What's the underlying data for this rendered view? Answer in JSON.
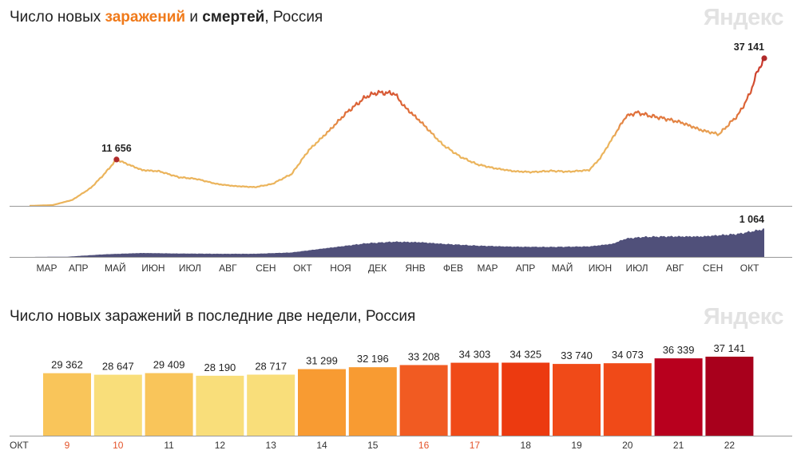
{
  "chart1": {
    "title_parts": {
      "p1": "Число новых ",
      "p2": "заражений",
      "p3": " и ",
      "p4": "смертей",
      "p5": ", Россия"
    },
    "brand": "Яндекс"
  },
  "chart2": {
    "title": "Число новых заражений в последние две недели, Россия",
    "brand": "Яндекс"
  },
  "colors": {
    "cases_low": "#ebb45c",
    "cases_high": "#c8322a",
    "deaths_fill": "#50507a",
    "baseline": "#999999",
    "marker": "#b02a2a"
  },
  "chart_data": [
    {
      "type": "line",
      "title": "Число новых заражений и смертей, Россия",
      "x_ticks": [
        "МАР",
        "АПР",
        "МАЙ",
        "ИЮН",
        "ИЮЛ",
        "АВГ",
        "СЕН",
        "ОКТ",
        "НОЯ",
        "ДЕК",
        "ЯНВ",
        "ФЕВ",
        "МАР",
        "АПР",
        "МАЙ",
        "ИЮН",
        "ИЮЛ",
        "АВГ",
        "СЕН",
        "ОКТ"
      ],
      "x_period": "2020-03 — 2021-10-22",
      "series": [
        {
          "name": "заражений",
          "x": [
            "2020-03-01",
            "2020-03-20",
            "2020-04-05",
            "2020-04-20",
            "2020-05-01",
            "2020-05-11",
            "2020-05-20",
            "2020-06-01",
            "2020-06-15",
            "2020-07-01",
            "2020-07-15",
            "2020-08-01",
            "2020-08-15",
            "2020-09-01",
            "2020-09-15",
            "2020-10-01",
            "2020-10-15",
            "2020-11-01",
            "2020-11-15",
            "2020-12-01",
            "2020-12-10",
            "2020-12-24",
            "2021-01-01",
            "2021-01-15",
            "2021-02-01",
            "2021-02-15",
            "2021-03-01",
            "2021-03-15",
            "2021-04-01",
            "2021-04-15",
            "2021-05-01",
            "2021-05-15",
            "2021-06-01",
            "2021-06-10",
            "2021-06-20",
            "2021-07-01",
            "2021-07-10",
            "2021-07-20",
            "2021-08-01",
            "2021-08-15",
            "2021-09-01",
            "2021-09-15",
            "2021-10-01",
            "2021-10-10",
            "2021-10-16",
            "2021-10-22"
          ],
          "values": [
            0,
            200,
            1500,
            4500,
            8000,
            11656,
            10500,
            9000,
            8700,
            7200,
            6800,
            5500,
            5000,
            4700,
            5500,
            8000,
            14000,
            19000,
            23500,
            27500,
            28500,
            28300,
            25000,
            21000,
            15500,
            12500,
            10500,
            9500,
            8700,
            8500,
            8800,
            8600,
            9000,
            12000,
            17000,
            22500,
            23500,
            22700,
            22000,
            21000,
            19000,
            18000,
            23000,
            28000,
            33500,
            37141
          ]
        },
        {
          "name": "смертей",
          "x": [
            "2020-03-01",
            "2020-04-01",
            "2020-05-01",
            "2020-06-01",
            "2020-07-01",
            "2020-08-01",
            "2020-09-01",
            "2020-10-01",
            "2020-11-01",
            "2020-12-01",
            "2020-12-24",
            "2021-01-15",
            "2021-02-01",
            "2021-03-01",
            "2021-04-01",
            "2021-05-01",
            "2021-06-01",
            "2021-06-20",
            "2021-07-01",
            "2021-07-15",
            "2021-08-01",
            "2021-09-01",
            "2021-10-01",
            "2021-10-22"
          ],
          "values": [
            0,
            10,
            100,
            150,
            130,
            120,
            120,
            170,
            350,
            520,
            580,
            560,
            500,
            430,
            390,
            380,
            400,
            500,
            700,
            760,
            780,
            780,
            880,
            1064
          ]
        }
      ],
      "annotations": [
        "11 656",
        "37 141",
        "1 064"
      ]
    },
    {
      "type": "bar",
      "title": "Число новых заражений в последние две недели, Россия",
      "month_label": "ОКТ",
      "categories": [
        "9",
        "10",
        "11",
        "12",
        "13",
        "14",
        "15",
        "16",
        "17",
        "18",
        "19",
        "20",
        "21",
        "22"
      ],
      "values": [
        29362,
        28647,
        29409,
        28190,
        28717,
        31299,
        32196,
        33208,
        34303,
        34325,
        33740,
        34073,
        36339,
        37141
      ],
      "value_labels": [
        "29 362",
        "28 647",
        "29 409",
        "28 190",
        "28 717",
        "31 299",
        "32 196",
        "33 208",
        "34 303",
        "34 325",
        "33 740",
        "34 073",
        "36 339",
        "37 141"
      ],
      "weekend": [
        true,
        true,
        false,
        false,
        false,
        false,
        false,
        true,
        true,
        false,
        false,
        false,
        false,
        false
      ],
      "bar_colors": [
        "#f9c55a",
        "#f9de7a",
        "#f9c55a",
        "#f9de7a",
        "#f9de7a",
        "#f89b32",
        "#f89b32",
        "#f15b22",
        "#f04a18",
        "#ec3a10",
        "#f04a18",
        "#f04a18",
        "#b8001e",
        "#a8001c"
      ],
      "weekend_label_color": "#e4542b",
      "weekday_label_color": "#333333"
    }
  ]
}
